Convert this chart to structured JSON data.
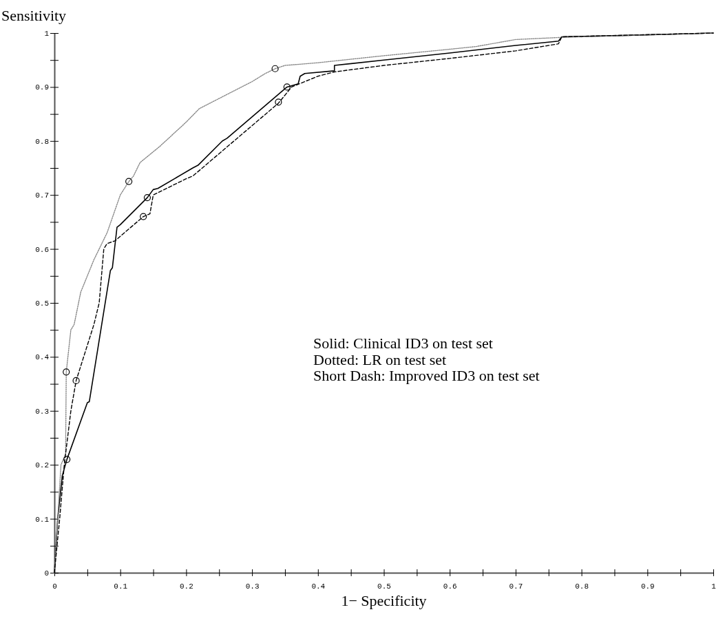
{
  "chart_data": {
    "type": "line",
    "xlabel": "1− Specificity",
    "ylabel": "Sensitivity",
    "xlim": [
      0,
      1
    ],
    "ylim": [
      0,
      1
    ],
    "xticks": [
      0,
      {
        "value": 0.05,
        "label": null
      },
      0.1,
      {
        "value": 0.15,
        "label": null
      },
      0.2,
      {
        "value": 0.25,
        "label": null
      },
      0.3,
      {
        "value": 0.35,
        "label": null
      },
      0.4,
      {
        "value": 0.45,
        "label": null
      },
      0.5,
      {
        "value": 0.55,
        "label": null
      },
      0.6,
      {
        "value": 0.65,
        "label": null
      },
      0.7,
      {
        "value": 0.75,
        "label": null
      },
      0.8,
      {
        "value": 0.85,
        "label": null
      },
      0.9,
      {
        "value": 0.95,
        "label": null
      },
      1
    ],
    "yticks": [
      0,
      {
        "value": 0.05,
        "label": null
      },
      0.1,
      {
        "value": 0.15,
        "label": null
      },
      0.2,
      {
        "value": 0.25,
        "label": null
      },
      0.3,
      {
        "value": 0.35,
        "label": null
      },
      0.4,
      {
        "value": 0.45,
        "label": null
      },
      0.5,
      {
        "value": 0.55,
        "label": null
      },
      0.6,
      {
        "value": 0.65,
        "label": null
      },
      0.7,
      {
        "value": 0.75,
        "label": null
      },
      0.8,
      {
        "value": 0.85,
        "label": null
      },
      0.9,
      {
        "value": 0.95,
        "label": null
      },
      1
    ],
    "grid": false,
    "series": [
      {
        "color": "#000000",
        "line_style": "solid",
        "x": [
          0,
          0.005,
          0.012,
          0.019,
          0.05,
          0.053,
          0.085,
          0.088,
          0.095,
          0.1,
          0.141,
          0.15,
          0.157,
          0.21,
          0.218,
          0.255,
          0.262,
          0.353,
          0.37,
          0.373,
          0.38,
          0.425,
          0.425,
          0.5,
          0.6,
          0.7,
          0.765,
          0.77,
          0.85,
          1
        ],
        "values": [
          0,
          0.1,
          0.18,
          0.21,
          0.315,
          0.317,
          0.56,
          0.565,
          0.64,
          0.645,
          0.695,
          0.71,
          0.712,
          0.75,
          0.755,
          0.8,
          0.805,
          0.9,
          0.906,
          0.92,
          0.925,
          0.93,
          0.94,
          0.95,
          0.963,
          0.977,
          0.985,
          0.993,
          0.995,
          1
        ]
      },
      {
        "color": "#888888",
        "line_style": "dotted",
        "x": [
          0,
          0.005,
          0.01,
          0.017,
          0.018,
          0.025,
          0.03,
          0.04,
          0.05,
          0.06,
          0.08,
          0.1,
          0.113,
          0.12,
          0.13,
          0.16,
          0.2,
          0.22,
          0.26,
          0.3,
          0.32,
          0.335,
          0.35,
          0.4,
          0.5,
          0.6,
          0.64,
          0.7,
          0.77,
          1
        ],
        "values": [
          0,
          0.1,
          0.2,
          0.22,
          0.372,
          0.45,
          0.46,
          0.52,
          0.55,
          0.58,
          0.63,
          0.7,
          0.725,
          0.735,
          0.76,
          0.79,
          0.835,
          0.86,
          0.885,
          0.91,
          0.925,
          0.934,
          0.94,
          0.945,
          0.958,
          0.97,
          0.975,
          0.988,
          0.992,
          1
        ]
      },
      {
        "color": "#000000",
        "line_style": "dashed",
        "x": [
          0,
          0.008,
          0.015,
          0.025,
          0.033,
          0.06,
          0.068,
          0.075,
          0.08,
          0.092,
          0.135,
          0.145,
          0.15,
          0.2,
          0.21,
          0.34,
          0.36,
          0.38,
          0.4,
          0.425,
          0.5,
          0.6,
          0.7,
          0.765,
          0.77,
          1
        ],
        "values": [
          0,
          0.1,
          0.2,
          0.3,
          0.356,
          0.46,
          0.5,
          0.6,
          0.61,
          0.615,
          0.66,
          0.665,
          0.7,
          0.73,
          0.735,
          0.87,
          0.9,
          0.91,
          0.92,
          0.928,
          0.94,
          0.953,
          0.967,
          0.98,
          0.993,
          1
        ]
      },
      {
        "type": "scatter",
        "marker": "circle",
        "color": "#000000",
        "x": [
          0.019,
          0.141,
          0.353,
          0.018,
          0.113,
          0.335,
          0.033,
          0.135,
          0.34
        ],
        "values": [
          0.21,
          0.695,
          0.9,
          0.372,
          0.725,
          0.934,
          0.356,
          0.66,
          0.872
        ]
      }
    ],
    "annotations": [
      "Solid: Clinical ID3 on test set",
      "Dotted: LR on test set",
      "Short Dash: Improved ID3 on test set"
    ]
  }
}
